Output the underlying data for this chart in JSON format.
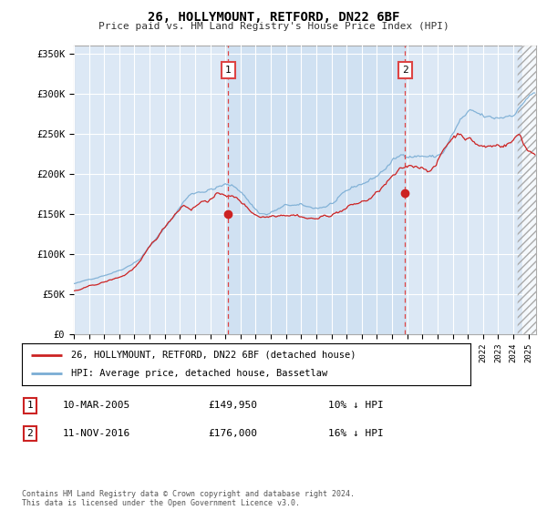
{
  "title": "26, HOLLYMOUNT, RETFORD, DN22 6BF",
  "subtitle": "Price paid vs. HM Land Registry's House Price Index (HPI)",
  "plot_bg_color": "#dce8f5",
  "shade_color": "#c5d8f0",
  "ylim": [
    0,
    360000
  ],
  "yticks": [
    0,
    50000,
    100000,
    150000,
    200000,
    250000,
    300000,
    350000
  ],
  "ytick_labels": [
    "£0",
    "£50K",
    "£100K",
    "£150K",
    "£200K",
    "£250K",
    "£300K",
    "£350K"
  ],
  "sale1": {
    "date_str": "10-MAR-2005",
    "date_x": 2005.19,
    "price": 149950,
    "label": "1"
  },
  "sale2": {
    "date_str": "11-NOV-2016",
    "date_x": 2016.86,
    "price": 176000,
    "label": "2"
  },
  "legend_line1": "26, HOLLYMOUNT, RETFORD, DN22 6BF (detached house)",
  "legend_line2": "HPI: Average price, detached house, Bassetlaw",
  "table_row1": [
    "1",
    "10-MAR-2005",
    "£149,950",
    "10% ↓ HPI"
  ],
  "table_row2": [
    "2",
    "11-NOV-2016",
    "£176,000",
    "16% ↓ HPI"
  ],
  "footer": "Contains HM Land Registry data © Crown copyright and database right 2024.\nThis data is licensed under the Open Government Licence v3.0.",
  "hpi_color": "#7aadd4",
  "price_color": "#cc2222",
  "vline_color": "#dd4444",
  "xlim_left": 1995.0,
  "xlim_right": 2025.5
}
